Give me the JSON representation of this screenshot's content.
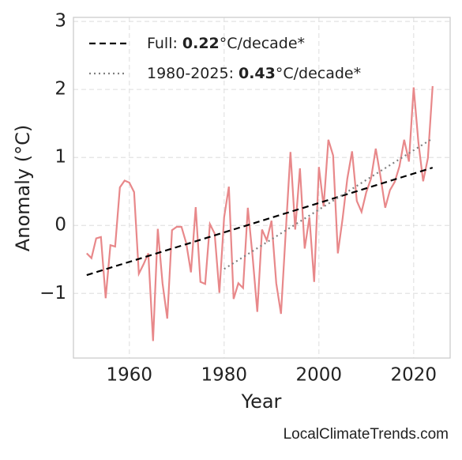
{
  "chart_data": {
    "type": "line",
    "xlabel": "Year",
    "ylabel": "Anomaly (°C)",
    "source": "LocalClimateTrends.com",
    "xlim": [
      1948.2,
      2027.7
    ],
    "xticks": [
      1960,
      1980,
      2000,
      2020
    ],
    "ylim": [
      -1.95,
      3.06
    ],
    "yticks": [
      {
        "value": -1,
        "label": "−1"
      },
      0,
      1,
      2,
      3
    ],
    "grid": true,
    "legend": "upper left",
    "series": [
      {
        "color": "#e8888a",
        "style": "solid",
        "x": [
          1951,
          1952,
          1953,
          1954,
          1955,
          1956,
          1957,
          1958,
          1959,
          1960,
          1961,
          1962,
          1963,
          1964,
          1965,
          1966,
          1967,
          1968,
          1969,
          1970,
          1971,
          1972,
          1973,
          1974,
          1975,
          1976,
          1977,
          1978,
          1979,
          1980,
          1981,
          1982,
          1983,
          1984,
          1985,
          1986,
          1987,
          1988,
          1989,
          1990,
          1991,
          1992,
          1993,
          1994,
          1995,
          1996,
          1997,
          1998,
          1999,
          2000,
          2001,
          2002,
          2003,
          2004,
          2005,
          2006,
          2007,
          2008,
          2009,
          2010,
          2011,
          2012,
          2013,
          2014,
          2015,
          2016,
          2017,
          2018,
          2019,
          2020,
          2021,
          2022,
          2023,
          2024
        ],
        "values": [
          -0.41,
          -0.48,
          -0.19,
          -0.17,
          -1.07,
          -0.29,
          -0.31,
          0.56,
          0.66,
          0.63,
          0.49,
          -0.71,
          -0.57,
          -0.41,
          -1.7,
          -0.05,
          -0.85,
          -1.37,
          -0.07,
          -0.02,
          -0.02,
          -0.26,
          -0.69,
          0.27,
          -0.83,
          -0.86,
          0.02,
          -0.12,
          -0.99,
          0.12,
          0.57,
          -1.08,
          -0.85,
          -0.92,
          0.26,
          -0.45,
          -1.27,
          -0.06,
          -0.22,
          0.07,
          -0.85,
          -1.3,
          -0.1,
          1.08,
          -0.06,
          0.84,
          -0.34,
          0.12,
          -0.83,
          0.86,
          0.28,
          1.26,
          1.03,
          -0.41,
          0.1,
          0.69,
          1.09,
          0.36,
          0.2,
          0.49,
          0.69,
          1.13,
          0.72,
          0.26,
          0.52,
          0.64,
          0.87,
          1.26,
          0.94,
          2.03,
          1.22,
          0.65,
          0.99,
          2.05
        ]
      },
      {
        "name": "Full:",
        "slope": "0.22",
        "unit": "°C/decade*",
        "color": "#000000",
        "style": "dashed",
        "x": [
          1951,
          2024
        ],
        "values": [
          -0.73,
          0.85
        ]
      },
      {
        "name": "1980-2025:",
        "slope": "0.43",
        "unit": "°C/decade*",
        "color": "#808080",
        "style": "dotted",
        "x": [
          1980,
          2024
        ],
        "values": [
          -0.64,
          1.28
        ]
      }
    ]
  }
}
